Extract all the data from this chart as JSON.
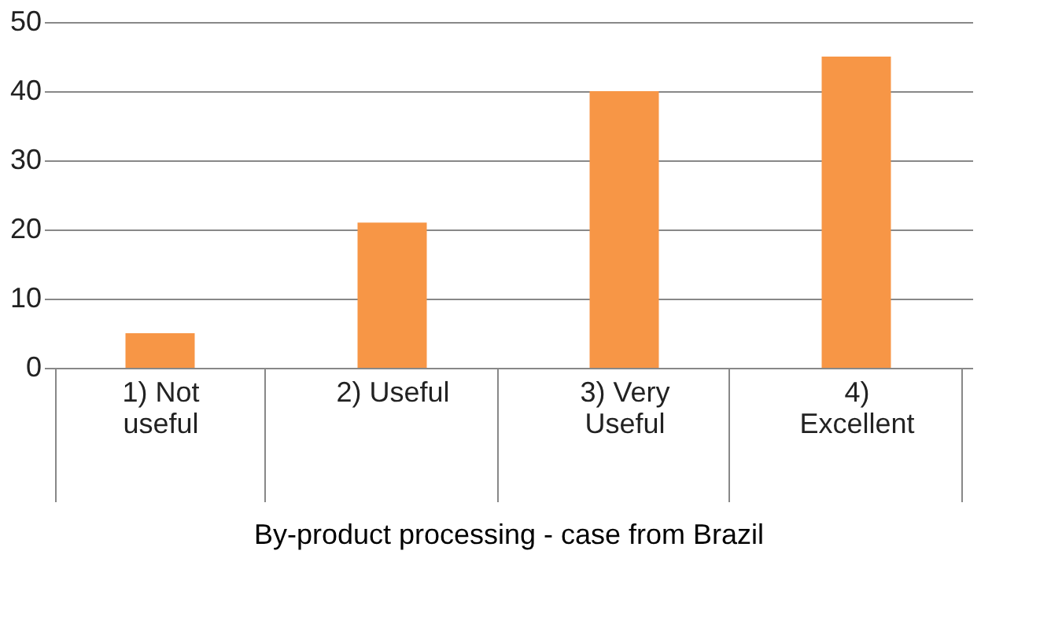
{
  "chart_data": {
    "type": "bar",
    "xlabel": "By-product processing - case from Brazil",
    "categories": [
      null,
      "1) Not useful",
      "2) Useful",
      "3) Very Useful",
      "4) Excellent"
    ],
    "values": [
      null,
      5,
      21,
      40,
      45
    ],
    "color": "#f79646",
    "ylim": [
      0,
      50
    ],
    "yticks": [
      0,
      10,
      20,
      30,
      40,
      50
    ],
    "grid": "y"
  }
}
